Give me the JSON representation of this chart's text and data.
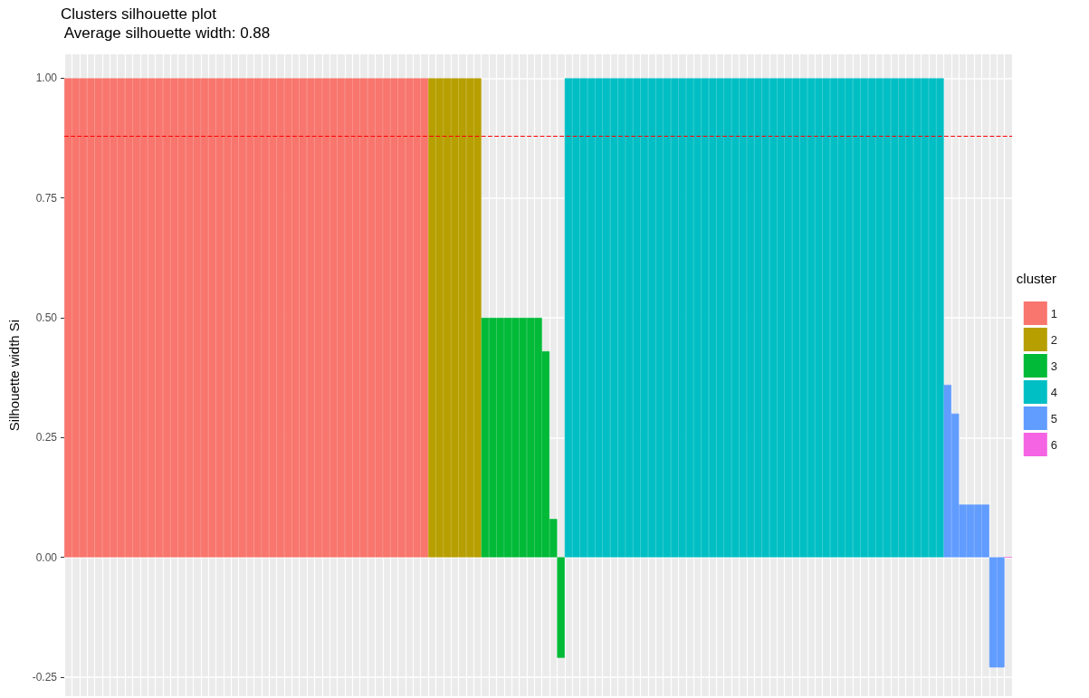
{
  "chart_data": {
    "type": "bar",
    "title": "Clusters silhouette plot",
    "subtitle": " Average silhouette width: 0.88",
    "ylabel": "Silhouette width Si",
    "legend_title": "cluster",
    "legend": "right",
    "grid": true,
    "tick_labels": "y",
    "categories": [
      null,
      null,
      null,
      null,
      null,
      null,
      null,
      null,
      null,
      null,
      null,
      null,
      null,
      null,
      null,
      null,
      null,
      null,
      null,
      null,
      null,
      null,
      null,
      null,
      null,
      null,
      null,
      null,
      null,
      null,
      null,
      null,
      null,
      null,
      null,
      null,
      null,
      null,
      null,
      null,
      null,
      null,
      null,
      null,
      null,
      null,
      null,
      null,
      null,
      null,
      null,
      null,
      null,
      null,
      null,
      null,
      null,
      null,
      null,
      null,
      null,
      null,
      null,
      null,
      null,
      null,
      null,
      null,
      null,
      null,
      null,
      null,
      null,
      null,
      null,
      null,
      null,
      null,
      null,
      null,
      null,
      null,
      null,
      null,
      null,
      null,
      null,
      null,
      null,
      null,
      null,
      null,
      null,
      null,
      null,
      null,
      null,
      null,
      null,
      null,
      null,
      null,
      null,
      null,
      null,
      null,
      null,
      null,
      null,
      null,
      null,
      null,
      null,
      null,
      null,
      null,
      null,
      null,
      null,
      null,
      null,
      null,
      null,
      null,
      null
    ],
    "ylim": [
      -0.29,
      1.05
    ],
    "yticks": [
      {
        "value": -0.25,
        "label": "-0.25"
      },
      {
        "value": 0,
        "label": "0.00"
      },
      {
        "value": 0.25,
        "label": "0.25"
      },
      {
        "value": 0.5,
        "label": "0.50"
      },
      {
        "value": 0.75,
        "label": "0.75"
      },
      {
        "value": 1,
        "label": "1.00"
      }
    ],
    "ref_lines": [
      {
        "axis": "y",
        "value": 0.88,
        "color": "#ff0000",
        "line_style": "dashed"
      }
    ],
    "series": [
      {
        "name": "1",
        "color": "#f8766d",
        "values": [
          1,
          1,
          1,
          1,
          1,
          1,
          1,
          1,
          1,
          1,
          1,
          1,
          1,
          1,
          1,
          1,
          1,
          1,
          1,
          1,
          1,
          1,
          1,
          1,
          1,
          1,
          1,
          1,
          1,
          1,
          1,
          1,
          1,
          1,
          1,
          1,
          1,
          1,
          1,
          1,
          1,
          1,
          1,
          1,
          1,
          1,
          1,
          1,
          null,
          null,
          null,
          null,
          null,
          null,
          null,
          null,
          null,
          null,
          null,
          null,
          null,
          null,
          null,
          null,
          null,
          null,
          null,
          null,
          null,
          null,
          null,
          null,
          null,
          null,
          null,
          null,
          null,
          null,
          null,
          null,
          null,
          null,
          null,
          null,
          null,
          null,
          null,
          null,
          null,
          null,
          null,
          null,
          null,
          null,
          null,
          null,
          null,
          null,
          null,
          null,
          null,
          null,
          null,
          null,
          null,
          null,
          null,
          null,
          null,
          null,
          null,
          null,
          null,
          null,
          null,
          null,
          null,
          null,
          null,
          null,
          null,
          null,
          null,
          null,
          null
        ]
      },
      {
        "name": "2",
        "color": "#b79f00",
        "values": [
          null,
          null,
          null,
          null,
          null,
          null,
          null,
          null,
          null,
          null,
          null,
          null,
          null,
          null,
          null,
          null,
          null,
          null,
          null,
          null,
          null,
          null,
          null,
          null,
          null,
          null,
          null,
          null,
          null,
          null,
          null,
          null,
          null,
          null,
          null,
          null,
          null,
          null,
          null,
          null,
          null,
          null,
          null,
          null,
          null,
          null,
          null,
          null,
          1,
          1,
          1,
          1,
          1,
          1,
          1,
          null,
          null,
          null,
          null,
          null,
          null,
          null,
          null,
          null,
          null,
          null,
          null,
          null,
          null,
          null,
          null,
          null,
          null,
          null,
          null,
          null,
          null,
          null,
          null,
          null,
          null,
          null,
          null,
          null,
          null,
          null,
          null,
          null,
          null,
          null,
          null,
          null,
          null,
          null,
          null,
          null,
          null,
          null,
          null,
          null,
          null,
          null,
          null,
          null,
          null,
          null,
          null,
          null,
          null,
          null,
          null,
          null,
          null,
          null,
          null,
          null,
          null,
          null,
          null,
          null,
          null,
          null,
          null,
          null,
          null
        ]
      },
      {
        "name": "3",
        "color": "#00ba38",
        "values": [
          null,
          null,
          null,
          null,
          null,
          null,
          null,
          null,
          null,
          null,
          null,
          null,
          null,
          null,
          null,
          null,
          null,
          null,
          null,
          null,
          null,
          null,
          null,
          null,
          null,
          null,
          null,
          null,
          null,
          null,
          null,
          null,
          null,
          null,
          null,
          null,
          null,
          null,
          null,
          null,
          null,
          null,
          null,
          null,
          null,
          null,
          null,
          null,
          null,
          null,
          null,
          null,
          null,
          null,
          null,
          0.5,
          0.5,
          0.5,
          0.5,
          0.5,
          0.5,
          0.5,
          0.5,
          0.43,
          0.08,
          -0.21,
          null,
          null,
          null,
          null,
          null,
          null,
          null,
          null,
          null,
          null,
          null,
          null,
          null,
          null,
          null,
          null,
          null,
          null,
          null,
          null,
          null,
          null,
          null,
          null,
          null,
          null,
          null,
          null,
          null,
          null,
          null,
          null,
          null,
          null,
          null,
          null,
          null,
          null,
          null,
          null,
          null,
          null,
          null,
          null,
          null,
          null,
          null,
          null,
          null,
          null,
          null,
          null,
          null,
          null,
          null,
          null,
          null,
          null,
          null
        ]
      },
      {
        "name": "4",
        "color": "#00bfc4",
        "values": [
          null,
          null,
          null,
          null,
          null,
          null,
          null,
          null,
          null,
          null,
          null,
          null,
          null,
          null,
          null,
          null,
          null,
          null,
          null,
          null,
          null,
          null,
          null,
          null,
          null,
          null,
          null,
          null,
          null,
          null,
          null,
          null,
          null,
          null,
          null,
          null,
          null,
          null,
          null,
          null,
          null,
          null,
          null,
          null,
          null,
          null,
          null,
          null,
          null,
          null,
          null,
          null,
          null,
          null,
          null,
          null,
          null,
          null,
          null,
          null,
          null,
          null,
          null,
          null,
          null,
          null,
          1,
          1,
          1,
          1,
          1,
          1,
          1,
          1,
          1,
          1,
          1,
          1,
          1,
          1,
          1,
          1,
          1,
          1,
          1,
          1,
          1,
          1,
          1,
          1,
          1,
          1,
          1,
          1,
          1,
          1,
          1,
          1,
          1,
          1,
          1,
          1,
          1,
          1,
          1,
          1,
          1,
          1,
          1,
          1,
          1,
          1,
          1,
          1,
          1,
          1,
          null,
          null,
          null,
          null,
          null,
          null,
          null,
          null,
          null
        ]
      },
      {
        "name": "5",
        "color": "#619cff",
        "values": [
          null,
          null,
          null,
          null,
          null,
          null,
          null,
          null,
          null,
          null,
          null,
          null,
          null,
          null,
          null,
          null,
          null,
          null,
          null,
          null,
          null,
          null,
          null,
          null,
          null,
          null,
          null,
          null,
          null,
          null,
          null,
          null,
          null,
          null,
          null,
          null,
          null,
          null,
          null,
          null,
          null,
          null,
          null,
          null,
          null,
          null,
          null,
          null,
          null,
          null,
          null,
          null,
          null,
          null,
          null,
          null,
          null,
          null,
          null,
          null,
          null,
          null,
          null,
          null,
          null,
          null,
          null,
          null,
          null,
          null,
          null,
          null,
          null,
          null,
          null,
          null,
          null,
          null,
          null,
          null,
          null,
          null,
          null,
          null,
          null,
          null,
          null,
          null,
          null,
          null,
          null,
          null,
          null,
          null,
          null,
          null,
          null,
          null,
          null,
          null,
          null,
          null,
          null,
          null,
          null,
          null,
          null,
          null,
          null,
          null,
          null,
          null,
          null,
          null,
          null,
          null,
          0.36,
          0.3,
          0.11,
          0.11,
          0.11,
          0.11,
          -0.23,
          -0.23,
          null
        ]
      },
      {
        "name": "6",
        "color": "#f564e3",
        "values": [
          null,
          null,
          null,
          null,
          null,
          null,
          null,
          null,
          null,
          null,
          null,
          null,
          null,
          null,
          null,
          null,
          null,
          null,
          null,
          null,
          null,
          null,
          null,
          null,
          null,
          null,
          null,
          null,
          null,
          null,
          null,
          null,
          null,
          null,
          null,
          null,
          null,
          null,
          null,
          null,
          null,
          null,
          null,
          null,
          null,
          null,
          null,
          null,
          null,
          null,
          null,
          null,
          null,
          null,
          null,
          null,
          null,
          null,
          null,
          null,
          null,
          null,
          null,
          null,
          null,
          null,
          null,
          null,
          null,
          null,
          null,
          null,
          null,
          null,
          null,
          null,
          null,
          null,
          null,
          null,
          null,
          null,
          null,
          null,
          null,
          null,
          null,
          null,
          null,
          null,
          null,
          null,
          null,
          null,
          null,
          null,
          null,
          null,
          null,
          null,
          null,
          null,
          null,
          null,
          null,
          null,
          null,
          null,
          null,
          null,
          null,
          null,
          null,
          null,
          null,
          null,
          null,
          null,
          null,
          null,
          null,
          null,
          null,
          null,
          0
        ]
      }
    ]
  }
}
